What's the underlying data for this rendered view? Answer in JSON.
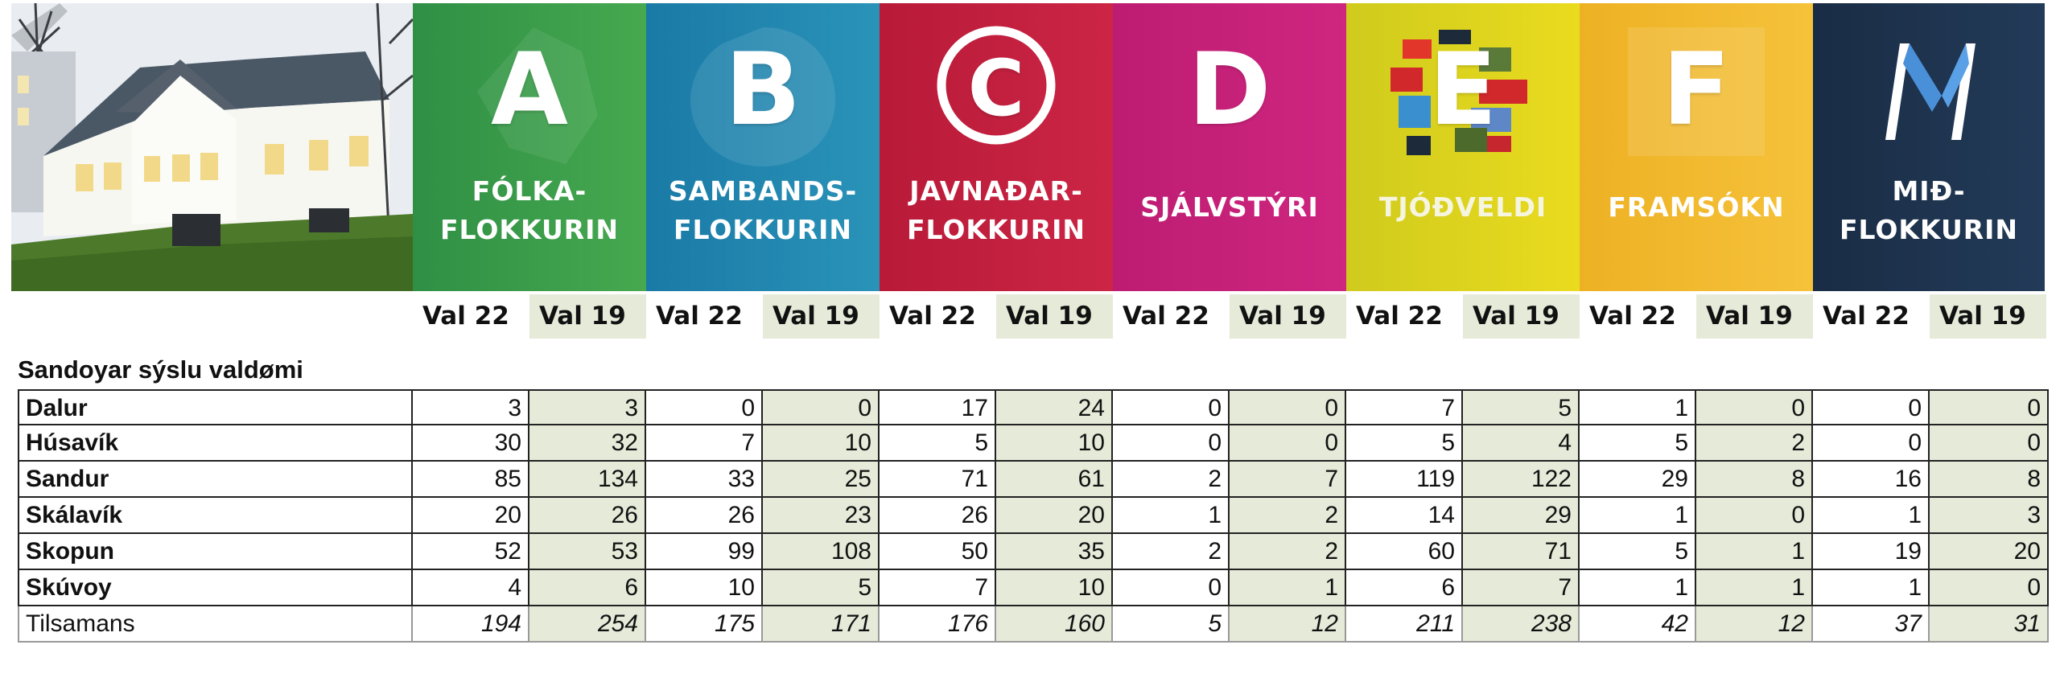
{
  "parties": [
    {
      "letter": "A",
      "name": "FÓLKA-\nFLOKKURIN",
      "color": "#3aa04a",
      "color2": "#1f8a3b"
    },
    {
      "letter": "B",
      "name": "SAMBANDS-\nFLOKKURIN",
      "color": "#1e86ad",
      "color2": "#1474a0"
    },
    {
      "letter": "C",
      "name": "JAVNAÐAR-\nFLOKKURIN",
      "color": "#c4203f",
      "color2": "#a8162f"
    },
    {
      "letter": "D",
      "name": "SJÁLVSTÝRI",
      "color": "#c8207a",
      "color2": "#b01a6a"
    },
    {
      "letter": "E",
      "name": "TJÓÐVELDI",
      "color": "#e6d21a",
      "color2": "#c9c21a"
    },
    {
      "letter": "F",
      "name": "FRAMSÓKN",
      "color": "#f2b72a",
      "color2": "#e8a720"
    },
    {
      "letter": "",
      "name": "MIÐ-\nFLOKKURIN",
      "color": "#1e3550",
      "color2": "#172a42"
    }
  ],
  "column_labels": [
    "Val 22",
    "Val 19",
    "Val 22",
    "Val 19",
    "Val 22",
    "Val 19",
    "Val 22",
    "Val 19",
    "Val 22",
    "Val 19",
    "Val 22",
    "Val 19",
    "Val 22",
    "Val 19"
  ],
  "section_title": "Sandoyar sýslu valdømi",
  "rows": [
    {
      "name": "Dalur",
      "values": [
        "3",
        "3",
        "0",
        "0",
        "17",
        "24",
        "0",
        "0",
        "7",
        "5",
        "1",
        "0",
        "0",
        "0"
      ]
    },
    {
      "name": "Húsavík",
      "values": [
        "30",
        "32",
        "7",
        "10",
        "5",
        "10",
        "0",
        "0",
        "5",
        "4",
        "5",
        "2",
        "0",
        "0"
      ]
    },
    {
      "name": "Sandur",
      "values": [
        "85",
        "134",
        "33",
        "25",
        "71",
        "61",
        "2",
        "7",
        "119",
        "122",
        "29",
        "8",
        "16",
        "8"
      ]
    },
    {
      "name": "Skálavík",
      "values": [
        "20",
        "26",
        "26",
        "23",
        "26",
        "20",
        "1",
        "2",
        "14",
        "29",
        "1",
        "0",
        "1",
        "3"
      ]
    },
    {
      "name": "Skopun",
      "values": [
        "52",
        "53",
        "99",
        "108",
        "50",
        "35",
        "2",
        "2",
        "60",
        "71",
        "5",
        "1",
        "19",
        "20"
      ]
    },
    {
      "name": "Skúvoy",
      "values": [
        "4",
        "6",
        "10",
        "5",
        "7",
        "10",
        "0",
        "1",
        "6",
        "7",
        "1",
        "1",
        "1",
        "0"
      ]
    }
  ],
  "total": {
    "name": "Tilsamans",
    "values": [
      "194",
      "254",
      "175",
      "171",
      "176",
      "160",
      "5",
      "12",
      "211",
      "238",
      "42",
      "12",
      "37",
      "31"
    ]
  }
}
